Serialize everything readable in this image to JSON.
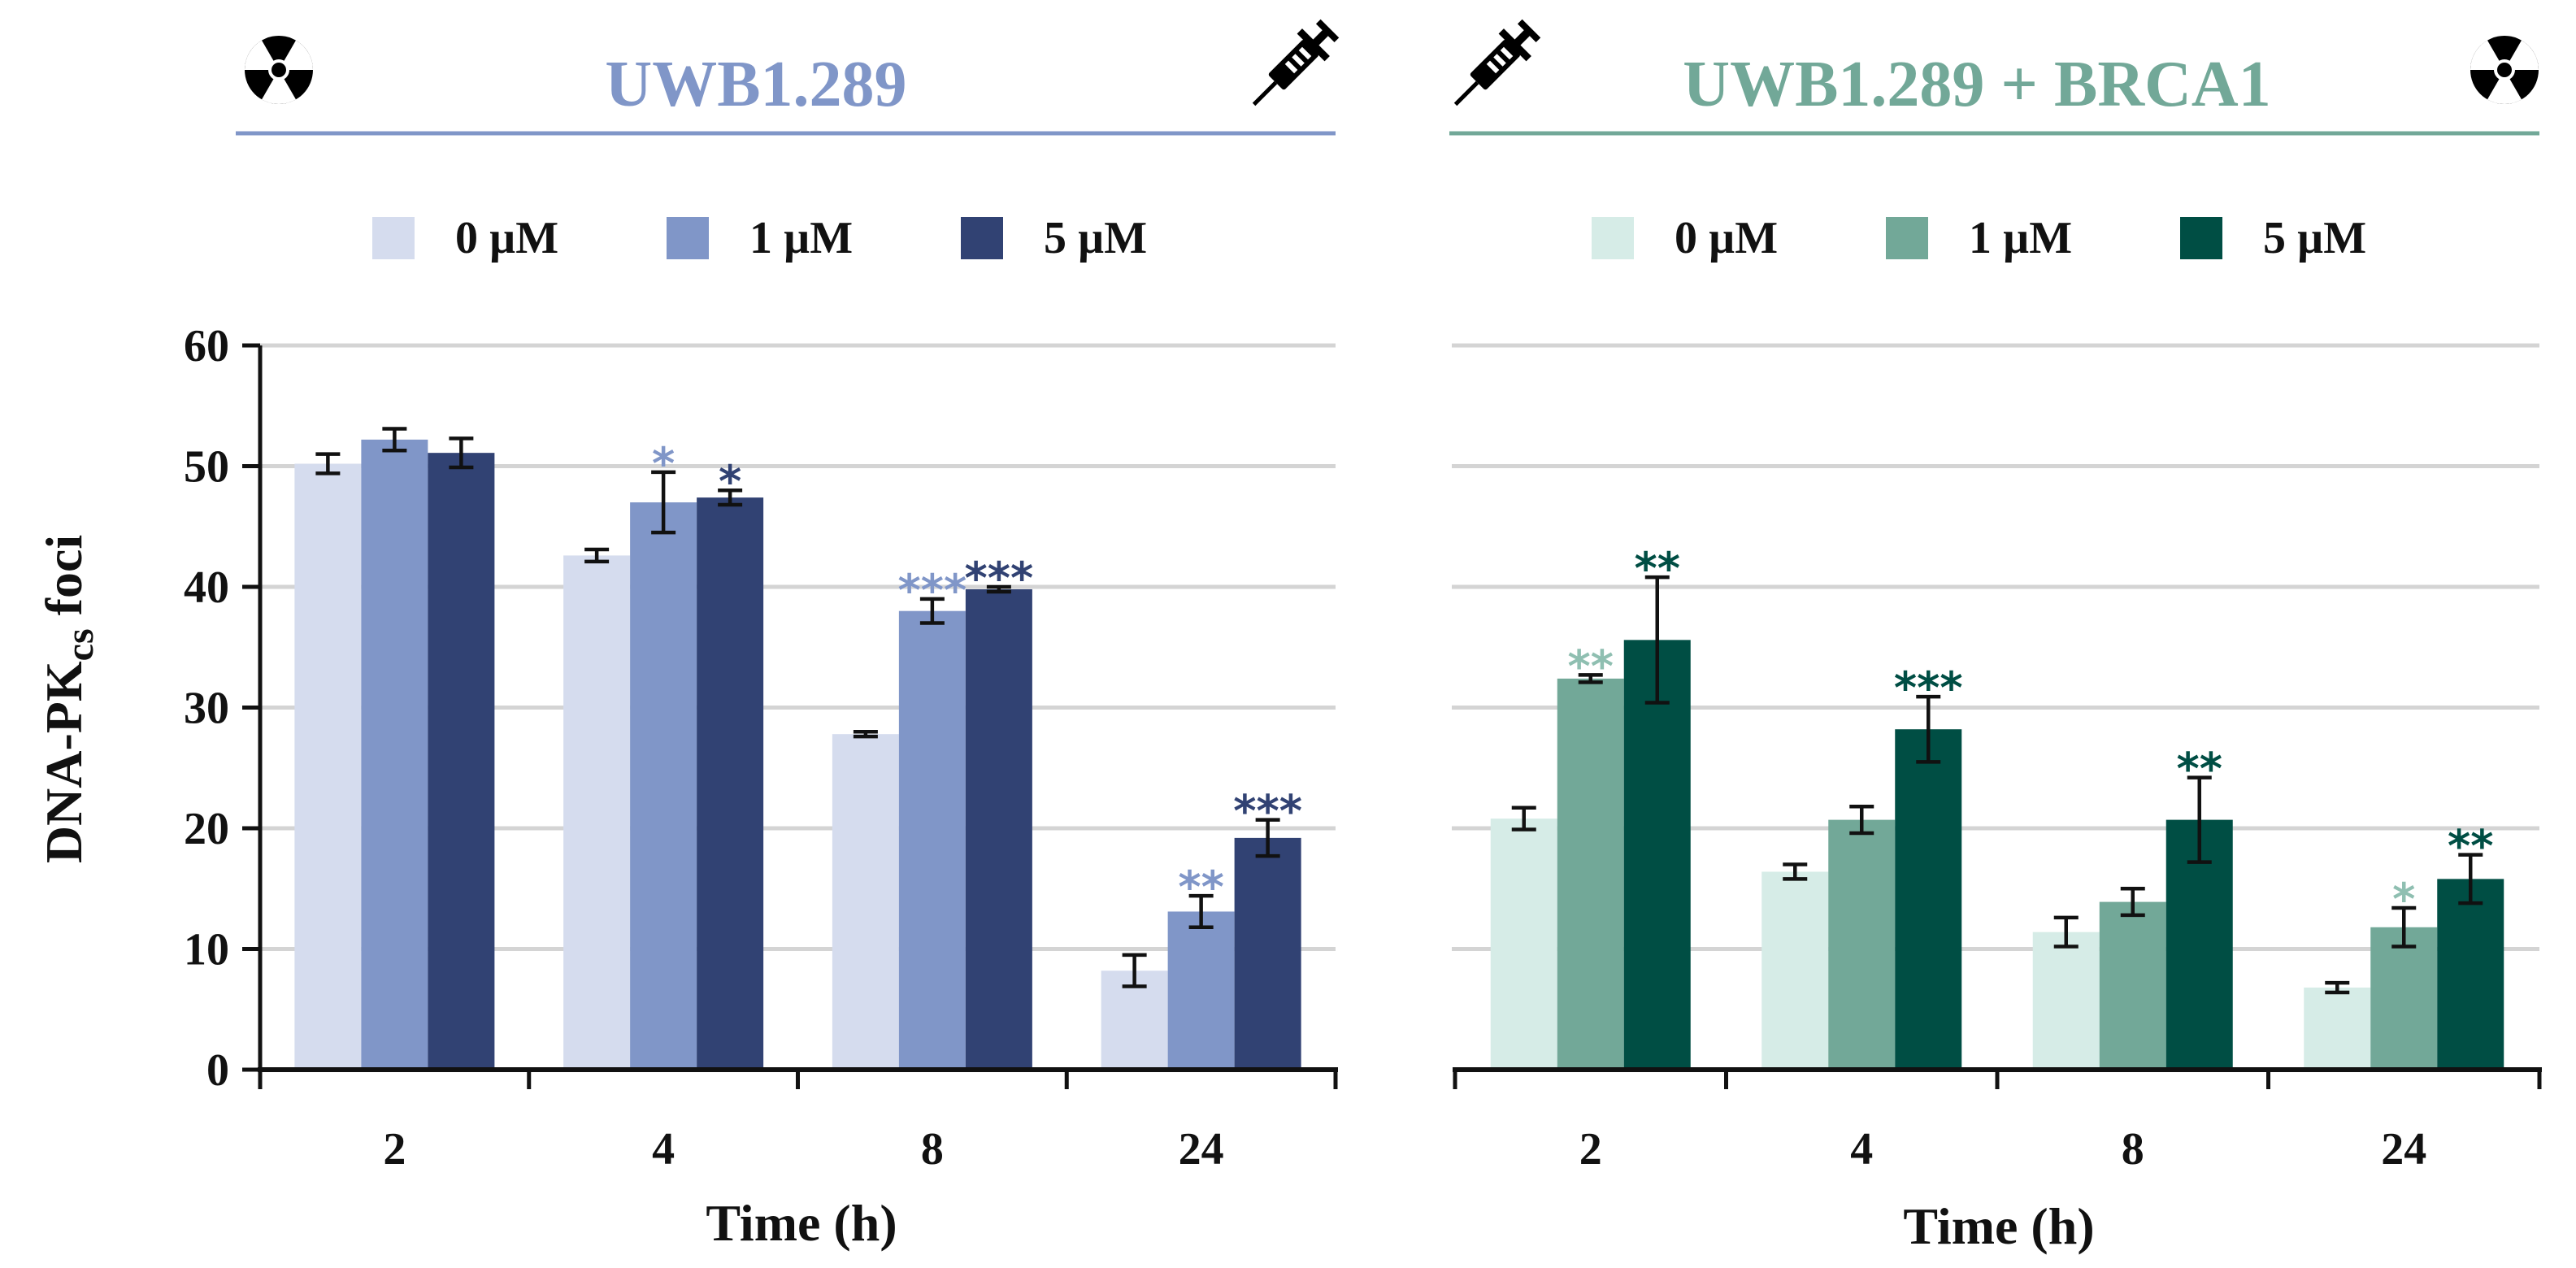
{
  "figure": {
    "ylabel": {
      "main": "DNA-PK",
      "sub": "cs",
      "tail": " foci"
    },
    "xlabel": "Time (h)",
    "icons": [
      "radiation-icon",
      "syringe-icon"
    ]
  },
  "chart_data": [
    {
      "type": "bar",
      "title": "UWB1.289",
      "title_color": "#8096c8",
      "xlabel": "Time (h)",
      "ylabel": "DNA-PKcs foci",
      "ylim": [
        0,
        60
      ],
      "yticks": [
        "0",
        "10",
        "20",
        "30",
        "40",
        "50",
        "60"
      ],
      "grid": true,
      "legend_position": "top",
      "categories": [
        "2",
        "4",
        "8",
        "24"
      ],
      "series": [
        {
          "name": "0 µM",
          "color": "#d5dcee",
          "values": [
            50.2,
            42.6,
            27.8,
            8.2
          ],
          "errors": [
            0.8,
            0.5,
            0.2,
            1.3
          ],
          "stars": [
            "",
            "",
            "",
            ""
          ],
          "star_color": "#d5dcee"
        },
        {
          "name": "1 µM",
          "color": "#8096c8",
          "values": [
            52.2,
            47.0,
            38.0,
            13.1
          ],
          "errors": [
            0.9,
            2.5,
            1.0,
            1.3
          ],
          "stars": [
            "",
            "*",
            "***",
            "**"
          ],
          "star_color": "#8096c8"
        },
        {
          "name": "5 µM",
          "color": "#314273",
          "values": [
            51.1,
            47.4,
            39.8,
            19.2
          ],
          "errors": [
            1.2,
            0.6,
            0.2,
            1.5
          ],
          "stars": [
            "",
            "*",
            "***",
            "***"
          ],
          "star_color": "#314273"
        }
      ]
    },
    {
      "type": "bar",
      "title": "UWB1.289 + BRCA1",
      "title_color": "#72a898",
      "xlabel": "Time (h)",
      "ylabel": "DNA-PKcs foci",
      "ylim": [
        0,
        60
      ],
      "yticks": [],
      "grid": true,
      "legend_position": "top",
      "categories": [
        "2",
        "4",
        "8",
        "24"
      ],
      "series": [
        {
          "name": "0 µM",
          "color": "#d6ece7",
          "values": [
            20.8,
            16.4,
            11.4,
            6.8
          ],
          "errors": [
            0.9,
            0.6,
            1.2,
            0.4
          ],
          "stars": [
            "",
            "",
            "",
            ""
          ],
          "star_color": "#d6ece7"
        },
        {
          "name": "1 µM",
          "color": "#72a898",
          "values": [
            32.4,
            20.7,
            13.9,
            11.8
          ],
          "errors": [
            0.3,
            1.1,
            1.1,
            1.6
          ],
          "stars": [
            "**",
            "",
            "",
            "*"
          ],
          "star_color": "#8fbfb1"
        },
        {
          "name": "5 µM",
          "color": "#004e44",
          "values": [
            35.6,
            28.2,
            20.7,
            15.8
          ],
          "errors": [
            5.2,
            2.7,
            3.5,
            2.0
          ],
          "stars": [
            "**",
            "***",
            "**",
            "**"
          ],
          "star_color": "#004e44"
        }
      ]
    }
  ]
}
